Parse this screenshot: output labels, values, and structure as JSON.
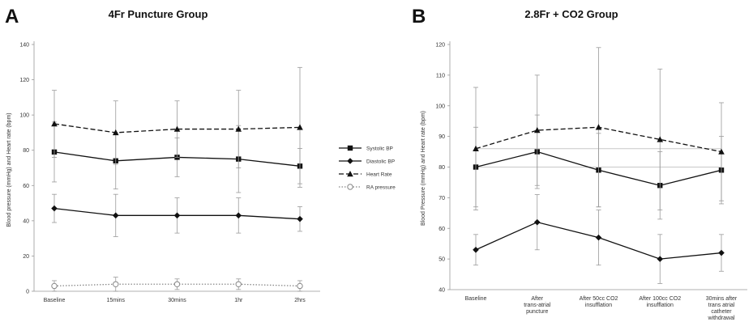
{
  "chart_data": [
    {
      "panel": "A",
      "type": "line",
      "title": "4Fr Puncture Group",
      "ylabel": "Blood pressure (mmHg) and Heart rate (bpm)",
      "xlabel": "",
      "categories": [
        "Baseline",
        "15mins",
        "30mins",
        "1hr",
        "2hrs"
      ],
      "ylim": [
        0,
        140
      ],
      "yticks": [
        0,
        20,
        40,
        60,
        80,
        100,
        120,
        140
      ],
      "series": [
        {
          "name": "Systolic BP",
          "values": [
            79,
            74,
            76,
            75,
            71
          ],
          "error": [
            17,
            16,
            11,
            19,
            10
          ],
          "style": "solid",
          "marker": "square"
        },
        {
          "name": "Diastolic BP",
          "values": [
            47,
            43,
            43,
            43,
            41
          ],
          "error": [
            8,
            12,
            10,
            10,
            7
          ],
          "style": "solid",
          "marker": "diamond"
        },
        {
          "name": "Heart Rate",
          "values": [
            95,
            90,
            92,
            92,
            93
          ],
          "error": [
            19,
            18,
            16,
            22,
            34
          ],
          "style": "dashed",
          "marker": "triangle"
        },
        {
          "name": "RA pressure",
          "values": [
            3,
            4,
            4,
            4,
            3
          ],
          "error": [
            3,
            4,
            3,
            3,
            3
          ],
          "style": "dotted",
          "marker": "circle"
        }
      ],
      "legend_position": "right"
    },
    {
      "panel": "B",
      "type": "line",
      "title": "2.8Fr + CO2 Group",
      "ylabel": "Blood Pressure (mmHg) and Heart rate (bpm)",
      "xlabel": "",
      "categories": [
        "Baseline",
        "After trans-atrial puncture",
        "After 50cc CO2 insufflation",
        "After 100cc CO2 insufflation",
        "30mins after trans atrial catheter withdrawal"
      ],
      "ylim": [
        40,
        120
      ],
      "yticks": [
        40,
        50,
        60,
        70,
        80,
        90,
        100,
        110,
        120
      ],
      "series": [
        {
          "values": [
            80,
            85,
            79,
            74,
            79
          ],
          "error": [
            13,
            12,
            12,
            11,
            11
          ],
          "style": "solid",
          "marker": "square"
        },
        {
          "values": [
            53,
            62,
            57,
            50,
            52
          ],
          "error": [
            5,
            9,
            9,
            8,
            6
          ],
          "style": "solid",
          "marker": "diamond"
        },
        {
          "values": [
            86,
            92,
            93,
            89,
            85
          ],
          "error": [
            20,
            18,
            26,
            23,
            16
          ],
          "style": "dashed",
          "marker": "triangle"
        }
      ],
      "reference_lines": [
        80,
        86
      ]
    }
  ]
}
